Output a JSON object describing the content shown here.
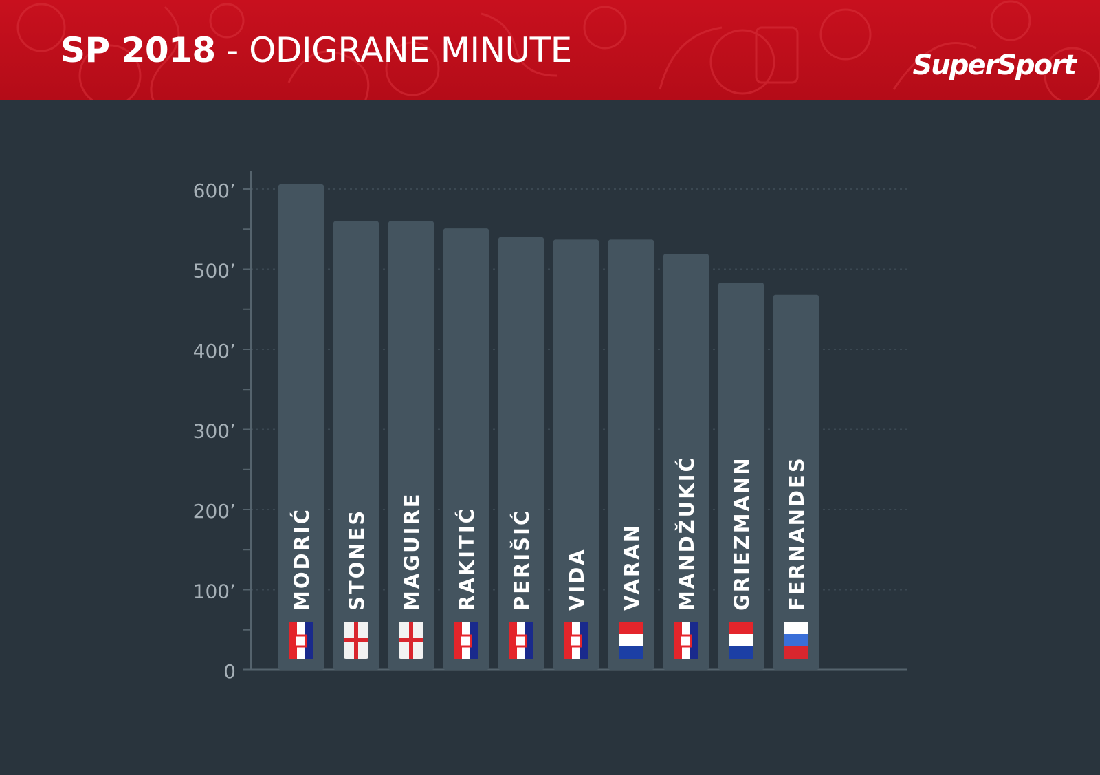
{
  "header": {
    "title_strong": "SP 2018",
    "title_rest": " - ODIGRANE MINUTE",
    "brand": "SuperSport",
    "bg_color": "#c8101e"
  },
  "colors": {
    "background": "#29343d",
    "bar": "#44545f",
    "axis": "#55636d",
    "tick_label": "#a6b0b7",
    "bar_label": "#ffffff"
  },
  "chart_data": {
    "type": "bar",
    "title": "",
    "xlabel": "",
    "ylabel": "",
    "ylim": [
      0,
      600
    ],
    "yticks": [
      0,
      100,
      200,
      300,
      400,
      500,
      600
    ],
    "ytick_labels": [
      "0",
      "100’",
      "200’",
      "300’",
      "400’",
      "500’",
      "600’"
    ],
    "grid": true,
    "categories": [
      "MODRIĆ",
      "STONES",
      "MAGUIRE",
      "RAKITIĆ",
      "PERIŠIĆ",
      "VIDA",
      "VARAN",
      "MANDŽUKIĆ",
      "GRIEZMANN",
      "FERNANDES"
    ],
    "flags": [
      "croatia",
      "england",
      "england",
      "croatia",
      "croatia",
      "croatia",
      "france",
      "croatia",
      "france",
      "russia"
    ],
    "values": [
      606,
      560,
      560,
      551,
      540,
      537,
      537,
      519,
      483,
      468
    ]
  }
}
